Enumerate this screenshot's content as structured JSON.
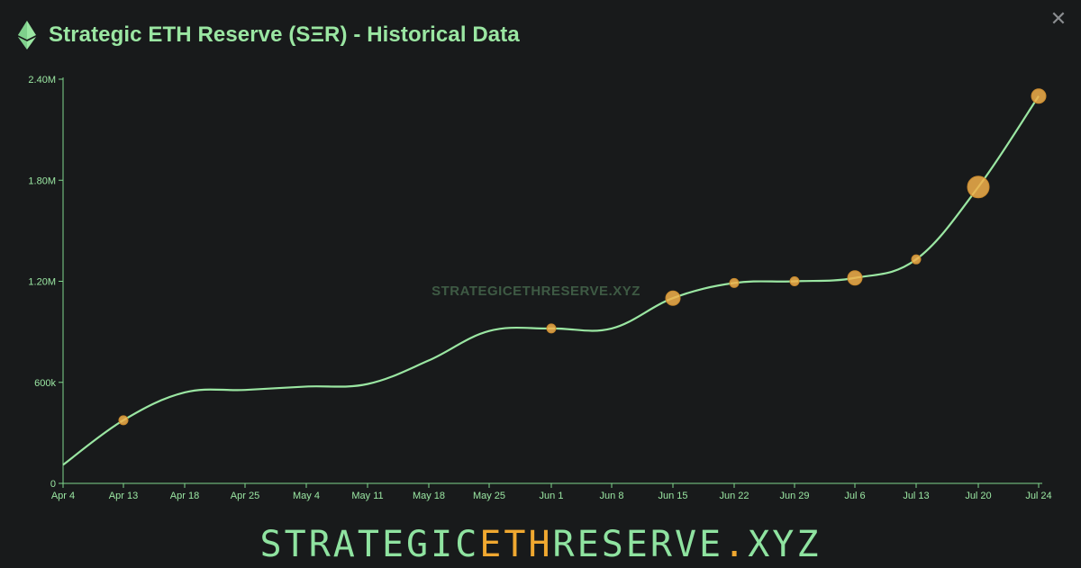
{
  "header": {
    "title": "Strategic ETH Reserve (SΞR) - Historical Data",
    "logo_icon": "ethereum-icon",
    "close_icon": "close-icon",
    "close_glyph": "✕"
  },
  "footer": {
    "brand_part1": "STRATEGIC",
    "brand_accent": "ETH",
    "brand_part2": "RESERVE",
    "brand_dot": ".",
    "brand_tld": "XYZ"
  },
  "colors": {
    "background": "#181a1b",
    "line": "#9ae6a2",
    "axis": "#7fd68c",
    "marker": "#f2b04a",
    "accent": "#f0a830"
  },
  "chart_data": {
    "type": "line",
    "title": "Strategic ETH Reserve (SΞR) - Historical Data",
    "watermark": "STRATEGICETHRESERVE.XYZ",
    "xlabel": "",
    "ylabel": "",
    "ylim": [
      0,
      2400000
    ],
    "y_ticks": [
      {
        "value": 0,
        "label": "0"
      },
      {
        "value": 600000,
        "label": "600k"
      },
      {
        "value": 1200000,
        "label": "1.20M"
      },
      {
        "value": 1800000,
        "label": "1.80M"
      },
      {
        "value": 2400000,
        "label": "2.40M"
      }
    ],
    "x_ticks": [
      "Apr 4",
      "Apr 13",
      "Apr 18",
      "Apr 25",
      "May 4",
      "May 11",
      "May 18",
      "May 25",
      "Jun 1",
      "Jun 8",
      "Jun 15",
      "Jun 22",
      "Jun 29",
      "Jul 6",
      "Jul 13",
      "Jul 20",
      "Jul 24"
    ],
    "grid": false,
    "series": [
      {
        "points": [
          {
            "x": "Apr 4",
            "y": 110000
          },
          {
            "x": "Apr 13",
            "y": 375000
          },
          {
            "x": "Apr 18",
            "y": 540000
          },
          {
            "x": "Apr 25",
            "y": 555000
          },
          {
            "x": "May 4",
            "y": 575000
          },
          {
            "x": "May 11",
            "y": 590000
          },
          {
            "x": "May 18",
            "y": 730000
          },
          {
            "x": "May 25",
            "y": 905000
          },
          {
            "x": "Jun 1",
            "y": 920000
          },
          {
            "x": "Jun 8",
            "y": 920000
          },
          {
            "x": "Jun 15",
            "y": 1100000
          },
          {
            "x": "Jun 22",
            "y": 1190000
          },
          {
            "x": "Jun 29",
            "y": 1200000
          },
          {
            "x": "Jul 6",
            "y": 1220000
          },
          {
            "x": "Jul 13",
            "y": 1330000
          },
          {
            "x": "Jul 20",
            "y": 1760000
          },
          {
            "x": "Jul 24",
            "y": 2300000
          }
        ]
      }
    ],
    "markers": [
      {
        "x": "Apr 13",
        "y": 375000,
        "size": "small"
      },
      {
        "x": "Jun 1",
        "y": 920000,
        "size": "small"
      },
      {
        "x": "Jun 15",
        "y": 1100000,
        "size": "medium"
      },
      {
        "x": "Jun 22",
        "y": 1190000,
        "size": "small"
      },
      {
        "x": "Jun 29",
        "y": 1200000,
        "size": "small"
      },
      {
        "x": "Jul 6",
        "y": 1220000,
        "size": "medium"
      },
      {
        "x": "Jul 13",
        "y": 1330000,
        "size": "small"
      },
      {
        "x": "Jul 20",
        "y": 1760000,
        "size": "large"
      },
      {
        "x": "Jul 24",
        "y": 2300000,
        "size": "medium"
      }
    ]
  }
}
